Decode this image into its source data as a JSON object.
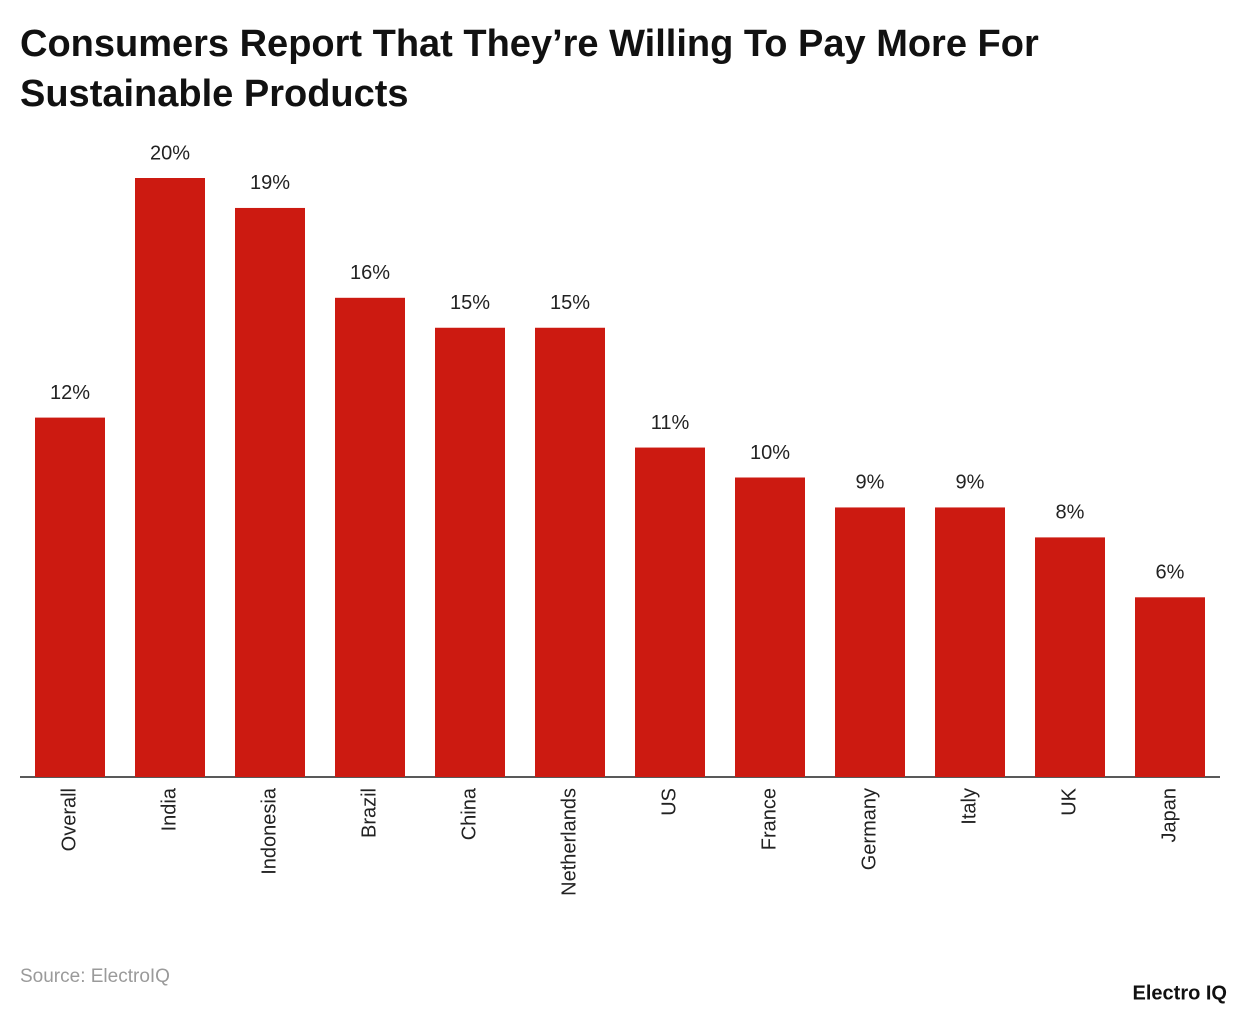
{
  "chart_data": {
    "type": "bar",
    "title": "Consumers Report That They’re Willing To Pay More For",
    "title_line2": "Sustainable Products",
    "categories": [
      "Overall",
      "India",
      "Indonesia",
      "Brazil",
      "China",
      "Netherlands",
      "US",
      "France",
      "Germany",
      "Italy",
      "UK",
      "Japan"
    ],
    "values": [
      12,
      20,
      19,
      16,
      15,
      15,
      11,
      10,
      9,
      9,
      8,
      6
    ],
    "value_labels": [
      "12%",
      "20%",
      "19%",
      "16%",
      "15%",
      "15%",
      "11%",
      "10%",
      "9%",
      "9%",
      "8%",
      "6%"
    ],
    "color": "#cc1a11",
    "ylim": [
      0,
      20
    ],
    "grid": false,
    "source": "Source: ElectroIQ",
    "brand": "Electro IQ"
  }
}
